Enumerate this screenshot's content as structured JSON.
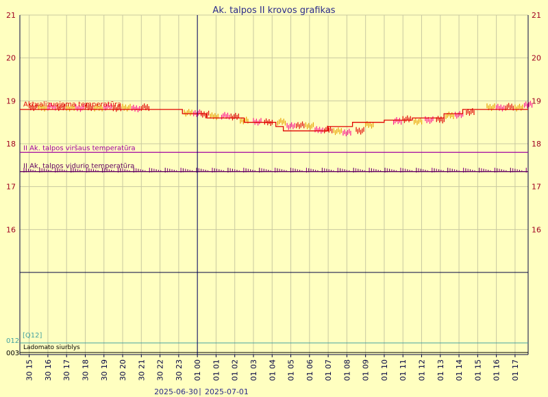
{
  "title": "Ak. talpos II krovos grafikas",
  "date_left": "2025-06-30",
  "date_separator": "|",
  "date_right": "2025-07-01",
  "colors": {
    "background": "#ffffc0",
    "grid": "#c8c8a0",
    "axis": "#000040",
    "title": "#2a2a8a",
    "tick_label": "#a00020",
    "midnight_line": "#000060",
    "upper": "#e00000",
    "middle": "#a000a0",
    "lower": "#600060",
    "pump": "#000000",
    "q12": "#40a0a0"
  },
  "chart_data": {
    "type": "line",
    "title": "Ak. talpos II krovos grafikas",
    "ylim": [
      15,
      21
    ],
    "yticks": [
      16,
      17,
      18,
      19,
      20,
      21
    ],
    "grid": true,
    "x_tick_labels": [
      "30 15",
      "30 16",
      "30 17",
      "30 18",
      "30 19",
      "30 20",
      "30 21",
      "30 22",
      "30 23",
      "01 00",
      "01 01",
      "01 02",
      "01 03",
      "01 04",
      "01 05",
      "01 06",
      "01 07",
      "01 08",
      "01 09",
      "01 10",
      "01 11",
      "01 12",
      "01 13",
      "01 14",
      "01 15",
      "01 16",
      "01 17"
    ],
    "x_start_hour": 14.5,
    "x_end_hour": 41.7,
    "midnight_hour": 24,
    "series": [
      {
        "name": "Aktualizuojama temperatūra",
        "color": "#e00000",
        "x": [
          14.5,
          23.2,
          23.2,
          24.5,
          24.5,
          26.5,
          26.5,
          28.2,
          28.2,
          28.6,
          28.6,
          31.0,
          31.0,
          32.3,
          32.3,
          34.0,
          34.0,
          35.5,
          35.5,
          37.2,
          37.2,
          38.2,
          38.2,
          41.7
        ],
        "y": [
          18.8,
          18.8,
          18.7,
          18.7,
          18.6,
          18.6,
          18.5,
          18.5,
          18.4,
          18.4,
          18.3,
          18.3,
          18.4,
          18.4,
          18.5,
          18.5,
          18.55,
          18.55,
          18.6,
          18.6,
          18.7,
          18.7,
          18.8,
          18.8
        ]
      },
      {
        "name": "II Ak. talpos viršaus temperatūra",
        "color": "#a000a0",
        "x": [
          14.5,
          41.7
        ],
        "y": [
          17.8,
          17.8
        ]
      },
      {
        "name": "II Ak. talpos vidurio temperatūra",
        "color": "#600060",
        "x": [
          14.5,
          41.7
        ],
        "y": [
          17.35,
          17.35
        ]
      }
    ],
    "noise_series": [
      {
        "name": "upper_noise",
        "colors": [
          "#e00000",
          "#e8a000",
          "#ff1090"
        ],
        "x": [
          15.0,
          15.5,
          16.0,
          16.5,
          17.0,
          17.5,
          18.0,
          18.5,
          19.0,
          19.5,
          20.0,
          20.5,
          21.0,
          23.3,
          23.8,
          24.2,
          24.7,
          25.3,
          25.8,
          26.3,
          27.0,
          27.6,
          28.3,
          28.8,
          29.3,
          29.8,
          30.3,
          30.8,
          31.3,
          31.8,
          32.5,
          33.0,
          34.5,
          35.0,
          35.6,
          36.2,
          36.8,
          37.3,
          37.8,
          38.4,
          39.5,
          40.0,
          40.5,
          41.0,
          41.5
        ],
        "y": [
          18.86,
          18.85,
          18.87,
          18.86,
          18.85,
          18.84,
          18.86,
          18.85,
          18.87,
          18.84,
          18.85,
          18.83,
          18.86,
          18.73,
          18.72,
          18.69,
          18.65,
          18.66,
          18.64,
          18.55,
          18.52,
          18.51,
          18.52,
          18.42,
          18.44,
          18.42,
          18.33,
          18.34,
          18.3,
          18.27,
          18.31,
          18.45,
          18.54,
          18.58,
          18.53,
          18.56,
          18.57,
          18.67,
          18.68,
          18.75,
          18.86,
          18.85,
          18.87,
          18.85,
          18.92
        ]
      },
      {
        "name": "lower_noise",
        "colors": [
          "#600060",
          "#8a008a"
        ],
        "x_from": 14.6,
        "x_to": 41.6,
        "step": 0.12,
        "y_base": 17.37,
        "y_amp": 0.07
      }
    ],
    "overlay_labels": [
      {
        "text": "Aktualizuojama temperatūra",
        "color": "#e00000"
      },
      {
        "text": "II Ak. talpos viršaus temperatūra",
        "color": "#a000a0"
      },
      {
        "text": "II Ak. talpos vidurio temperatūra",
        "color": "#600060"
      }
    ],
    "lower_panel": {
      "q12_label": "[Q12]",
      "q12_tick": "012",
      "pump_label": "Ladomato siurblys",
      "pump_tick": "003"
    }
  }
}
